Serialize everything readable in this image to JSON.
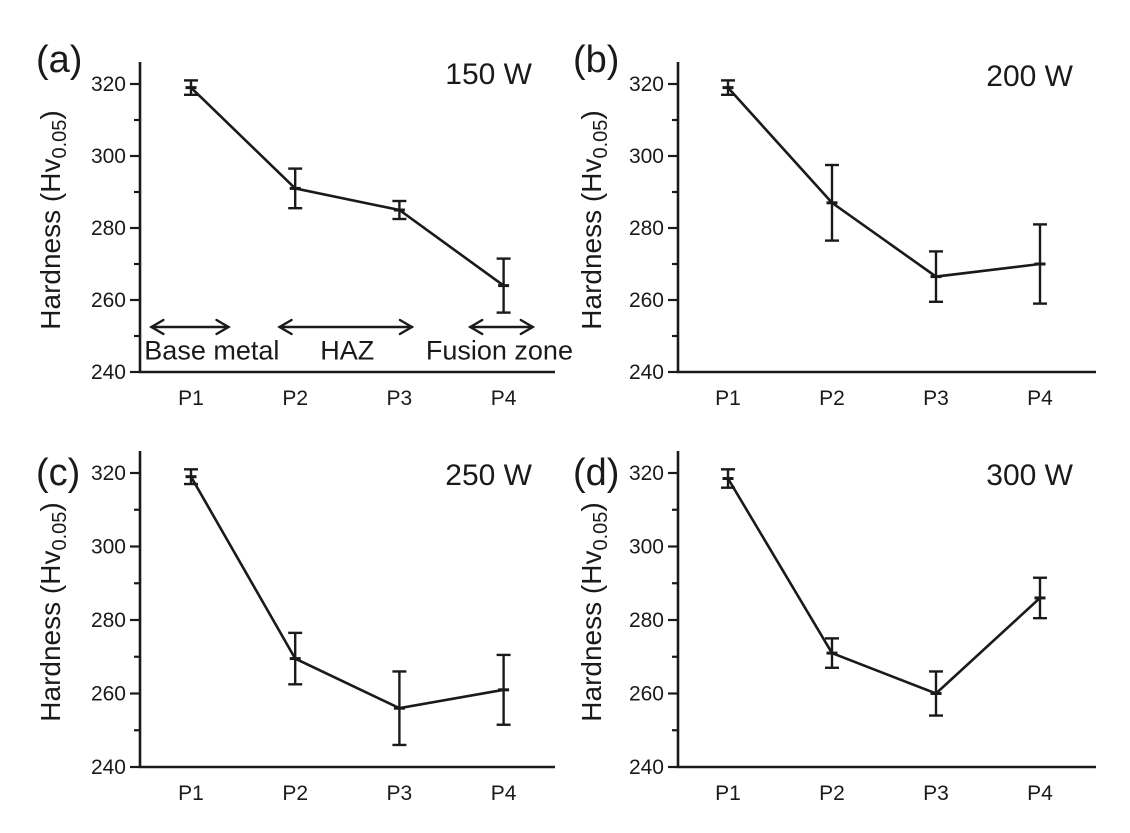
{
  "figure": {
    "background": "#ffffff",
    "line_color": "#1a1a1a",
    "y_axis_label": {
      "prefix": "Hardness (Hv",
      "subscript": "0.05",
      "suffix": ")"
    },
    "y_ticks": [
      240,
      260,
      280,
      300,
      320
    ],
    "y_minor_ticks": [
      250,
      270,
      290,
      310
    ],
    "x_categories": [
      "P1",
      "P2",
      "P3",
      "P4"
    ],
    "ylim": [
      240,
      328
    ]
  },
  "chart_data": [
    {
      "type": "line",
      "panel_label": "(a)",
      "title": "150 W",
      "categories": [
        "P1",
        "P2",
        "P3",
        "P4"
      ],
      "values": [
        319,
        291,
        285,
        264
      ],
      "errors": [
        2,
        5.5,
        2.5,
        7.5
      ],
      "xlabel": "",
      "ylabel": "Hardness (Hv0.05)",
      "ylim": [
        240,
        328
      ],
      "grid": false,
      "legend": "none",
      "zones": [
        {
          "label": "Base metal",
          "arrow_span": [
            0.62,
            1.36
          ],
          "label_center": 1.2
        },
        {
          "label": "HAZ",
          "arrow_span": [
            1.85,
            3.12
          ],
          "label_center": 2.5
        },
        {
          "label": "Fusion zone",
          "arrow_span": [
            3.68,
            4.28
          ],
          "label_center": 3.96
        }
      ],
      "zone_arrow_hardness": 252.5,
      "zone_label_hardness": 243.5
    },
    {
      "type": "line",
      "panel_label": "(b)",
      "title": "200 W",
      "categories": [
        "P1",
        "P2",
        "P3",
        "P4"
      ],
      "values": [
        319,
        287,
        266.5,
        270
      ],
      "errors": [
        2,
        10.5,
        7,
        11
      ],
      "xlabel": "",
      "ylabel": "Hardness (Hv0.05)",
      "ylim": [
        240,
        328
      ],
      "grid": false,
      "legend": "none"
    },
    {
      "type": "line",
      "panel_label": "(c)",
      "title": "250 W",
      "categories": [
        "P1",
        "P2",
        "P3",
        "P4"
      ],
      "values": [
        319,
        269.5,
        256,
        261
      ],
      "errors": [
        2,
        7,
        10,
        9.5
      ],
      "xlabel": "",
      "ylabel": "Hardness (Hv0.05)",
      "ylim": [
        240,
        328
      ],
      "grid": false,
      "legend": "none"
    },
    {
      "type": "line",
      "panel_label": "(d)",
      "title": "300 W",
      "categories": [
        "P1",
        "P2",
        "P3",
        "P4"
      ],
      "values": [
        318.5,
        271,
        260,
        286
      ],
      "errors": [
        2.5,
        4,
        6,
        5.5
      ],
      "xlabel": "",
      "ylabel": "Hardness (Hv0.05)",
      "ylim": [
        240,
        328
      ],
      "grid": false,
      "legend": "none"
    }
  ]
}
